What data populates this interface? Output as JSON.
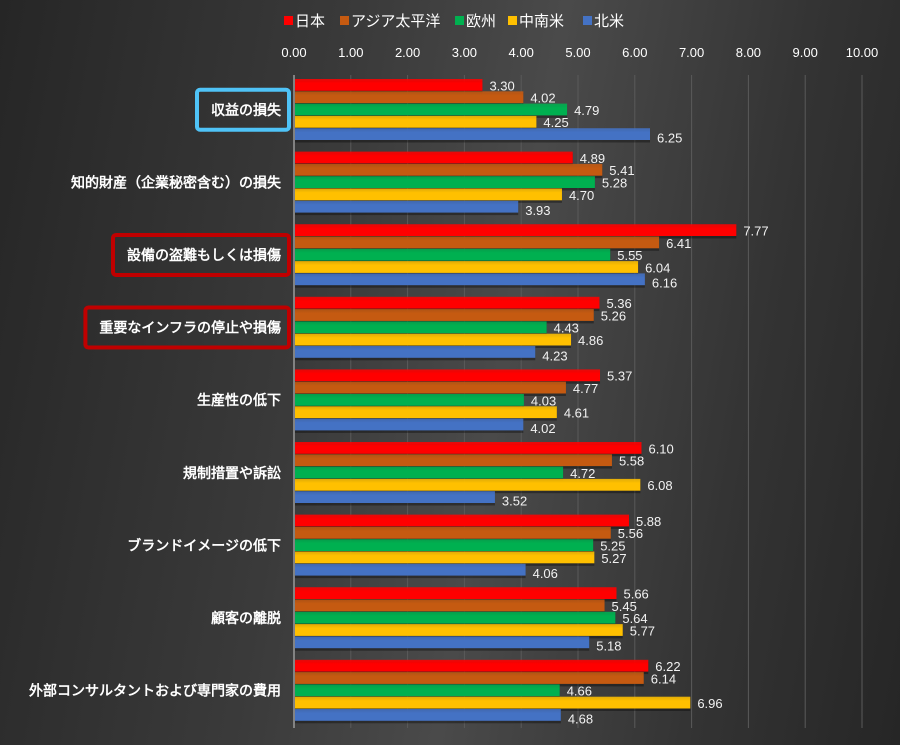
{
  "chart_data": {
    "type": "bar",
    "orientation": "horizontal",
    "title": "",
    "xlabel": "",
    "ylabel": "",
    "xlim": [
      0,
      10
    ],
    "x_ticks": [
      "0.00",
      "1.00",
      "2.00",
      "3.00",
      "4.00",
      "5.00",
      "6.00",
      "7.00",
      "8.00",
      "9.00",
      "10.00"
    ],
    "grid": true,
    "legend_position": "top",
    "categories": [
      "収益の損失",
      "知的財産（企業秘密含む）の損失",
      "設備の盗難もしくは損傷",
      "重要なインフラの停止や損傷",
      "生産性の低下",
      "規制措置や訴訟",
      "ブランドイメージの低下",
      "顧客の離脱",
      "外部コンサルタントおよび専門家の費用"
    ],
    "series": [
      {
        "name": "日本",
        "color": "#ff0000",
        "values": [
          3.3,
          4.89,
          7.77,
          5.36,
          5.37,
          6.1,
          5.88,
          5.66,
          6.22
        ]
      },
      {
        "name": "アジア太平洋",
        "color": "#c55a11",
        "values": [
          4.02,
          5.41,
          6.41,
          5.26,
          4.77,
          5.58,
          5.56,
          5.45,
          6.14
        ]
      },
      {
        "name": "欧州",
        "color": "#00b050",
        "values": [
          4.79,
          5.28,
          5.55,
          4.43,
          4.03,
          4.72,
          5.25,
          5.64,
          4.66
        ]
      },
      {
        "name": "中南米",
        "color": "#ffc000",
        "values": [
          4.25,
          4.7,
          6.04,
          4.86,
          4.61,
          6.08,
          5.27,
          5.77,
          6.96
        ]
      },
      {
        "name": "北米",
        "color": "#4472c4",
        "values": [
          6.25,
          3.93,
          6.16,
          4.23,
          4.02,
          3.52,
          4.06,
          5.18,
          4.68
        ]
      }
    ],
    "value_format": "0.00",
    "annotations": [
      {
        "category": "収益の損失",
        "type": "highlight-box",
        "color": "#4fc3f7"
      },
      {
        "category": "設備の盗難もしくは損傷",
        "type": "highlight-box",
        "color": "#c00000"
      },
      {
        "category": "重要なインフラの停止や損傷",
        "type": "highlight-box",
        "color": "#c00000"
      }
    ]
  }
}
